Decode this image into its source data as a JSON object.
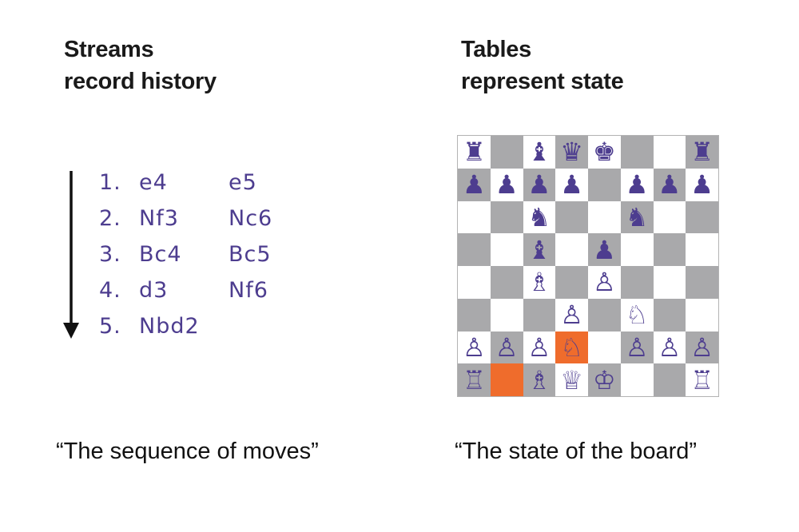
{
  "left": {
    "heading_line1": "Streams",
    "heading_line2": "record history",
    "caption": "“The sequence of moves”"
  },
  "right": {
    "heading_line1": "Tables",
    "heading_line2": "represent state",
    "caption": "“The state of the board”"
  },
  "moves": [
    {
      "num": "1.",
      "white": "e4",
      "black": "e5"
    },
    {
      "num": "2.",
      "white": "Nf3",
      "black": "Nc6"
    },
    {
      "num": "3.",
      "white": "Bc4",
      "black": "Bc5"
    },
    {
      "num": "4.",
      "white": "d3",
      "black": "Nf6"
    },
    {
      "num": "5.",
      "white": "Nbd2",
      "black": ""
    }
  ],
  "board": {
    "ranks": [
      [
        "r",
        "",
        "b",
        "q",
        "k",
        "",
        "",
        "r"
      ],
      [
        "p",
        "p",
        "p",
        "p",
        "",
        "p",
        "p",
        "p"
      ],
      [
        "",
        "",
        "n",
        "",
        "",
        "n",
        "",
        ""
      ],
      [
        "",
        "",
        "b",
        "",
        "p",
        "",
        "",
        ""
      ],
      [
        "",
        "",
        "B",
        "",
        "P",
        "",
        "",
        ""
      ],
      [
        "",
        "",
        "",
        "P",
        "",
        "N",
        "",
        ""
      ],
      [
        "P",
        "P",
        "P",
        "N",
        "",
        "P",
        "P",
        "P"
      ],
      [
        "R",
        "",
        "B",
        "Q",
        "K",
        "",
        "",
        "R"
      ]
    ],
    "highlighted_squares": [
      "d2",
      "b1"
    ],
    "colors": {
      "light_square": "#ffffff",
      "dark_square": "#a9a9ab",
      "highlight": "#ef6c2c",
      "piece": "#4d3d8f"
    }
  }
}
